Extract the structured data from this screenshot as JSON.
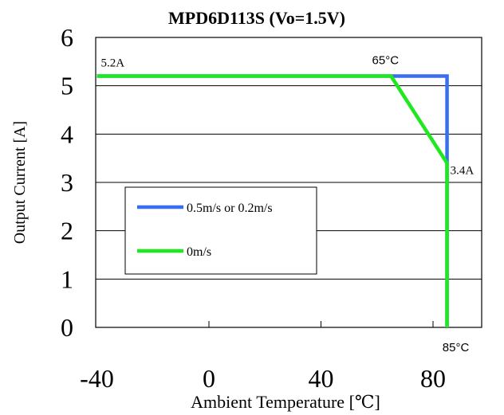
{
  "chart_data": {
    "type": "line",
    "title": "MPD6D113S  (Vo=1.5V)",
    "xlabel": "Ambient Temperature [℃]",
    "ylabel": "Output Current [A]",
    "xlim": [
      -40,
      100
    ],
    "ylim": [
      0,
      6
    ],
    "x_ticks": [
      -40,
      0,
      40,
      80
    ],
    "x_tick_labels": [
      "-40",
      "0",
      "40",
      "80"
    ],
    "y_ticks": [
      0,
      1,
      2,
      3,
      4,
      5,
      6
    ],
    "y_tick_labels": [
      "0",
      "1",
      "2",
      "3",
      "4",
      "5",
      "6"
    ],
    "grid": "horizontal",
    "legend_position": "center-left",
    "series": [
      {
        "name": "0.5m/s or 0.2m/s",
        "color": "#3a6ef0",
        "x": [
          -40,
          85,
          85
        ],
        "y": [
          5.2,
          5.2,
          0
        ]
      },
      {
        "name": "0m/s",
        "color": "#1ee81e",
        "x": [
          -40,
          65,
          85,
          85
        ],
        "y": [
          5.2,
          5.2,
          3.4,
          0
        ]
      }
    ],
    "annotations": [
      {
        "text": "5.2A",
        "x": -40,
        "y": 5.2
      },
      {
        "text": "65°C",
        "x": 65,
        "y": 5.2
      },
      {
        "text": "3.4A",
        "x": 85,
        "y": 3.4
      },
      {
        "text": "85°C",
        "x": 85,
        "y": 0
      }
    ]
  }
}
